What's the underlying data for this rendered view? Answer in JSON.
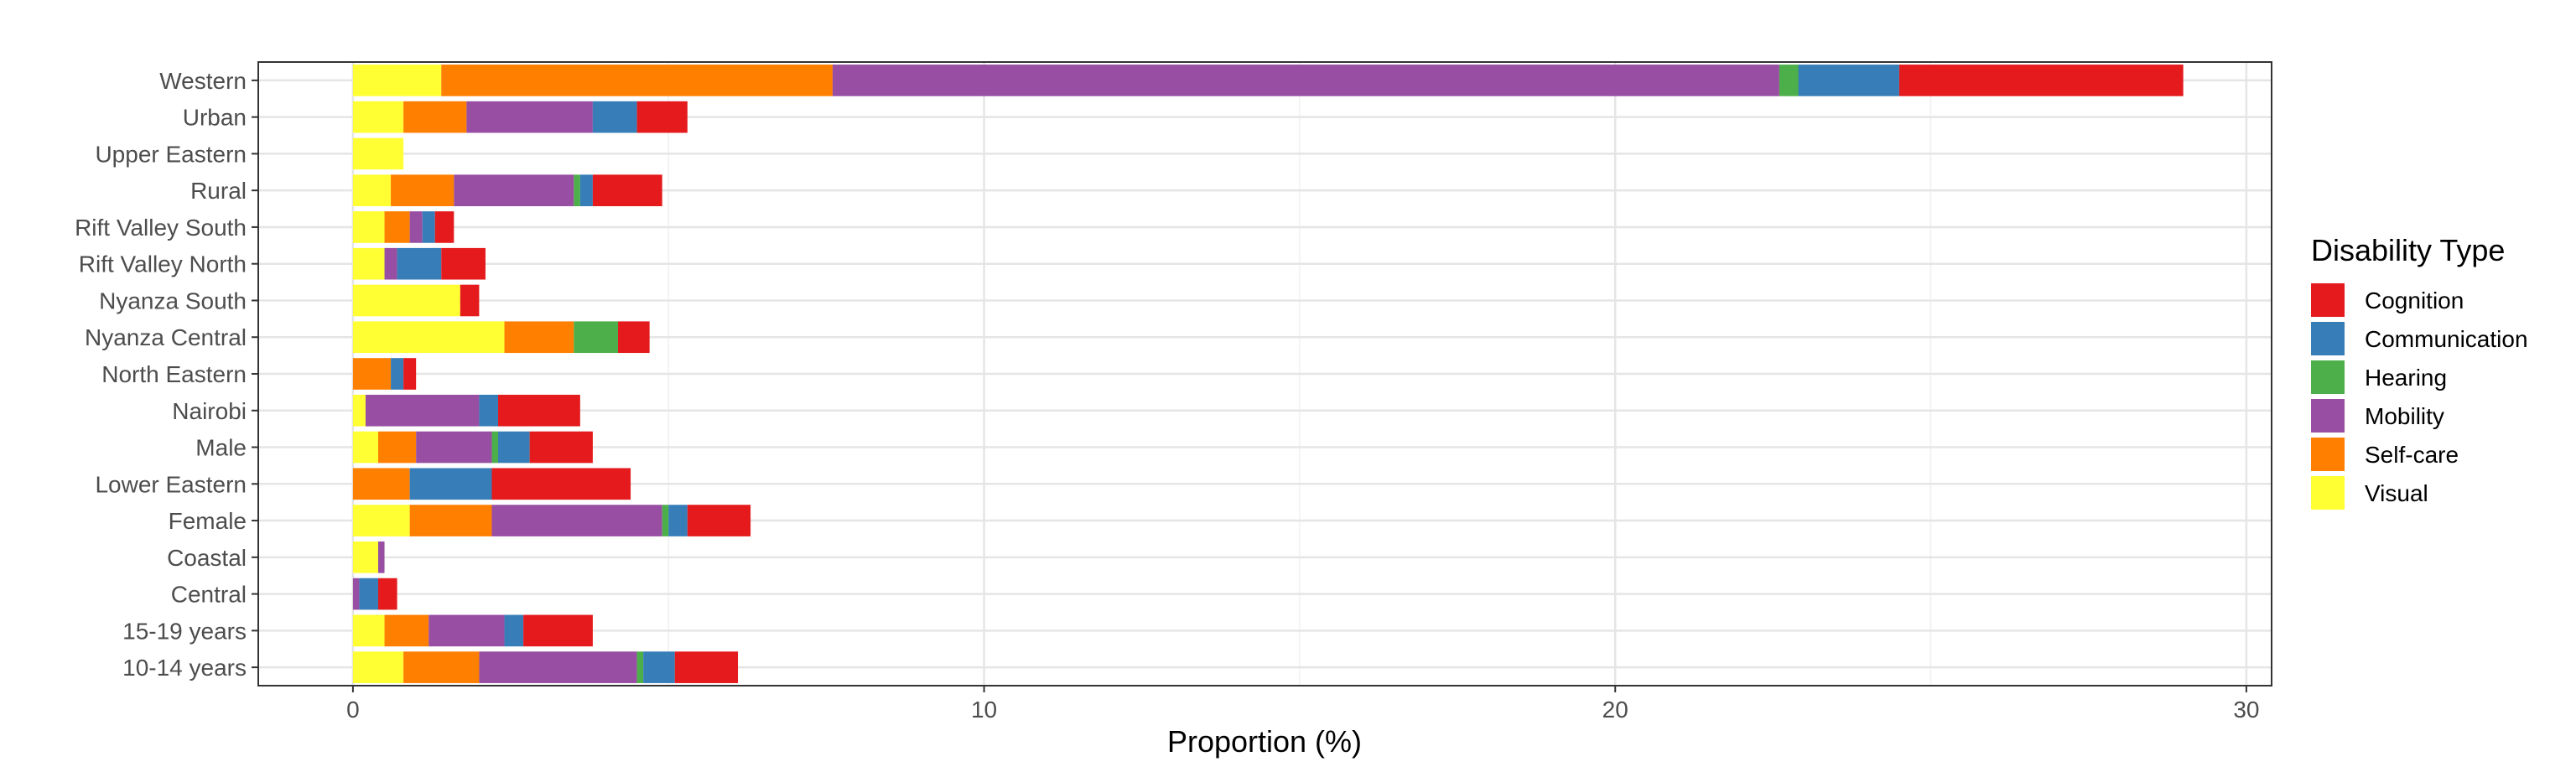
{
  "chart_data": {
    "type": "bar",
    "orientation": "horizontal",
    "stacked": true,
    "title": "",
    "xlabel": "Proportion (%)",
    "ylabel": "",
    "xlim": [
      -1.5,
      30.4
    ],
    "xticks": [
      0,
      10,
      20,
      30
    ],
    "grid": true,
    "legend": {
      "title": "Disability Type",
      "placement": "right"
    },
    "categories": [
      "Western",
      "Urban",
      "Upper Eastern",
      "Rural",
      "Rift Valley South",
      "Rift Valley North",
      "Nyanza South",
      "Nyanza Central",
      "North Eastern",
      "Nairobi",
      "Male",
      "Lower Eastern",
      "Female",
      "Coastal",
      "Central",
      "15-19 years",
      "10-14 years"
    ],
    "stack_order": [
      "Visual",
      "Self-care",
      "Mobility",
      "Hearing",
      "Communication",
      "Cognition"
    ],
    "series": [
      {
        "name": "Cognition",
        "color": "#e41a1c",
        "values": [
          4.5,
          0.8,
          0,
          1.1,
          0.3,
          0.7,
          0.3,
          0.5,
          0.2,
          1.3,
          1.0,
          2.2,
          1.0,
          0,
          0.3,
          1.1,
          1.0
        ]
      },
      {
        "name": "Communication",
        "color": "#377eb8",
        "values": [
          1.6,
          0.7,
          0,
          0.2,
          0.2,
          0.7,
          0,
          0,
          0.2,
          0.3,
          0.5,
          1.3,
          0.3,
          0,
          0.3,
          0.3,
          0.5
        ]
      },
      {
        "name": "Hearing",
        "color": "#4daf4a",
        "values": [
          0.3,
          0,
          0,
          0.1,
          0,
          0,
          0,
          0.7,
          0,
          0,
          0.1,
          0,
          0.1,
          0,
          0,
          0,
          0.1
        ]
      },
      {
        "name": "Mobility",
        "color": "#984ea3",
        "values": [
          15.0,
          2.0,
          0,
          1.9,
          0.2,
          0.2,
          0,
          0,
          0,
          1.8,
          1.2,
          0,
          2.7,
          0.1,
          0.1,
          1.2,
          2.5
        ]
      },
      {
        "name": "Self-care",
        "color": "#ff7f00",
        "values": [
          6.2,
          1.0,
          0,
          1.0,
          0.4,
          0,
          0,
          1.1,
          0.6,
          0,
          0.6,
          0.9,
          1.3,
          0,
          0,
          0.7,
          1.2
        ]
      },
      {
        "name": "Visual",
        "color": "#ffff33",
        "values": [
          1.4,
          0.8,
          0.8,
          0.6,
          0.5,
          0.5,
          1.7,
          2.4,
          0,
          0.2,
          0.4,
          0,
          0.9,
          0.4,
          0,
          0.5,
          0.8
        ]
      }
    ]
  }
}
